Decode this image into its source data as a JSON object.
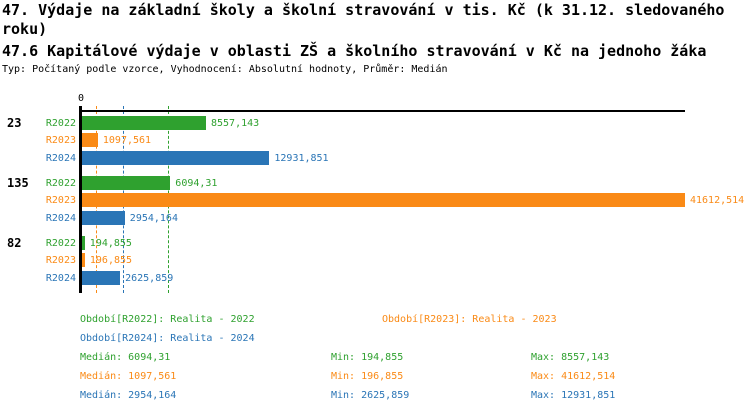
{
  "header": {
    "title": "47. Výdaje na základní školy a školní stravování v tis. Kč (k 31.12. sledovaného roku)",
    "subtitle": "47.6 Kapitálové výdaje v oblasti ZŠ a školního stravování v Kč na jednoho žáka",
    "meta": "Typ: Počítaný podle vzorce, Vyhodnocení: Absolutní hodnoty, Průměr: Medián"
  },
  "colors": {
    "R2022": "#2FA12F",
    "R2023": "#FA8A16",
    "R2024": "#2A75B6",
    "axis": "#000000",
    "background": "#FFFFFF"
  },
  "chart_data": {
    "type": "bar",
    "orientation": "horizontal",
    "axis_zero_label": "0",
    "xlim": [
      0,
      41612.514
    ],
    "grid": "median-lines-only",
    "groups": [
      {
        "label": "23",
        "bars": [
          {
            "series": "R2022",
            "value": 8557.143,
            "value_label": "8557,143"
          },
          {
            "series": "R2023",
            "value": 1097.561,
            "value_label": "1097,561"
          },
          {
            "series": "R2024",
            "value": 12931.851,
            "value_label": "12931,851"
          }
        ]
      },
      {
        "label": "135",
        "bars": [
          {
            "series": "R2022",
            "value": 6094.31,
            "value_label": "6094,31"
          },
          {
            "series": "R2023",
            "value": 41612.514,
            "value_label": "41612,514"
          },
          {
            "series": "R2024",
            "value": 2954.164,
            "value_label": "2954,164"
          }
        ]
      },
      {
        "label": "82",
        "bars": [
          {
            "series": "R2022",
            "value": 194.855,
            "value_label": "194,855"
          },
          {
            "series": "R2023",
            "value": 196.855,
            "value_label": "196,855"
          },
          {
            "series": "R2024",
            "value": 2625.859,
            "value_label": "2625,859"
          }
        ]
      }
    ],
    "median_lines": [
      {
        "series": "R2022",
        "value": 6094.31
      },
      {
        "series": "R2023",
        "value": 1097.561
      },
      {
        "series": "R2024",
        "value": 2954.164
      }
    ],
    "legend": [
      {
        "series": "R2022",
        "label": "Období[R2022]: Realita - 2022"
      },
      {
        "series": "R2023",
        "label": "Období[R2023]: Realita - 2023"
      },
      {
        "series": "R2024",
        "label": "Období[R2024]: Realita - 2024"
      }
    ],
    "stats": [
      {
        "series": "R2022",
        "median": "Medián: 6094,31",
        "min": "Min: 194,855",
        "max": "Max: 8557,143"
      },
      {
        "series": "R2023",
        "median": "Medián: 1097,561",
        "min": "Min: 196,855",
        "max": "Max: 41612,514"
      },
      {
        "series": "R2024",
        "median": "Medián: 2954,164",
        "min": "Min: 2625,859",
        "max": "Max: 12931,851"
      }
    ]
  }
}
